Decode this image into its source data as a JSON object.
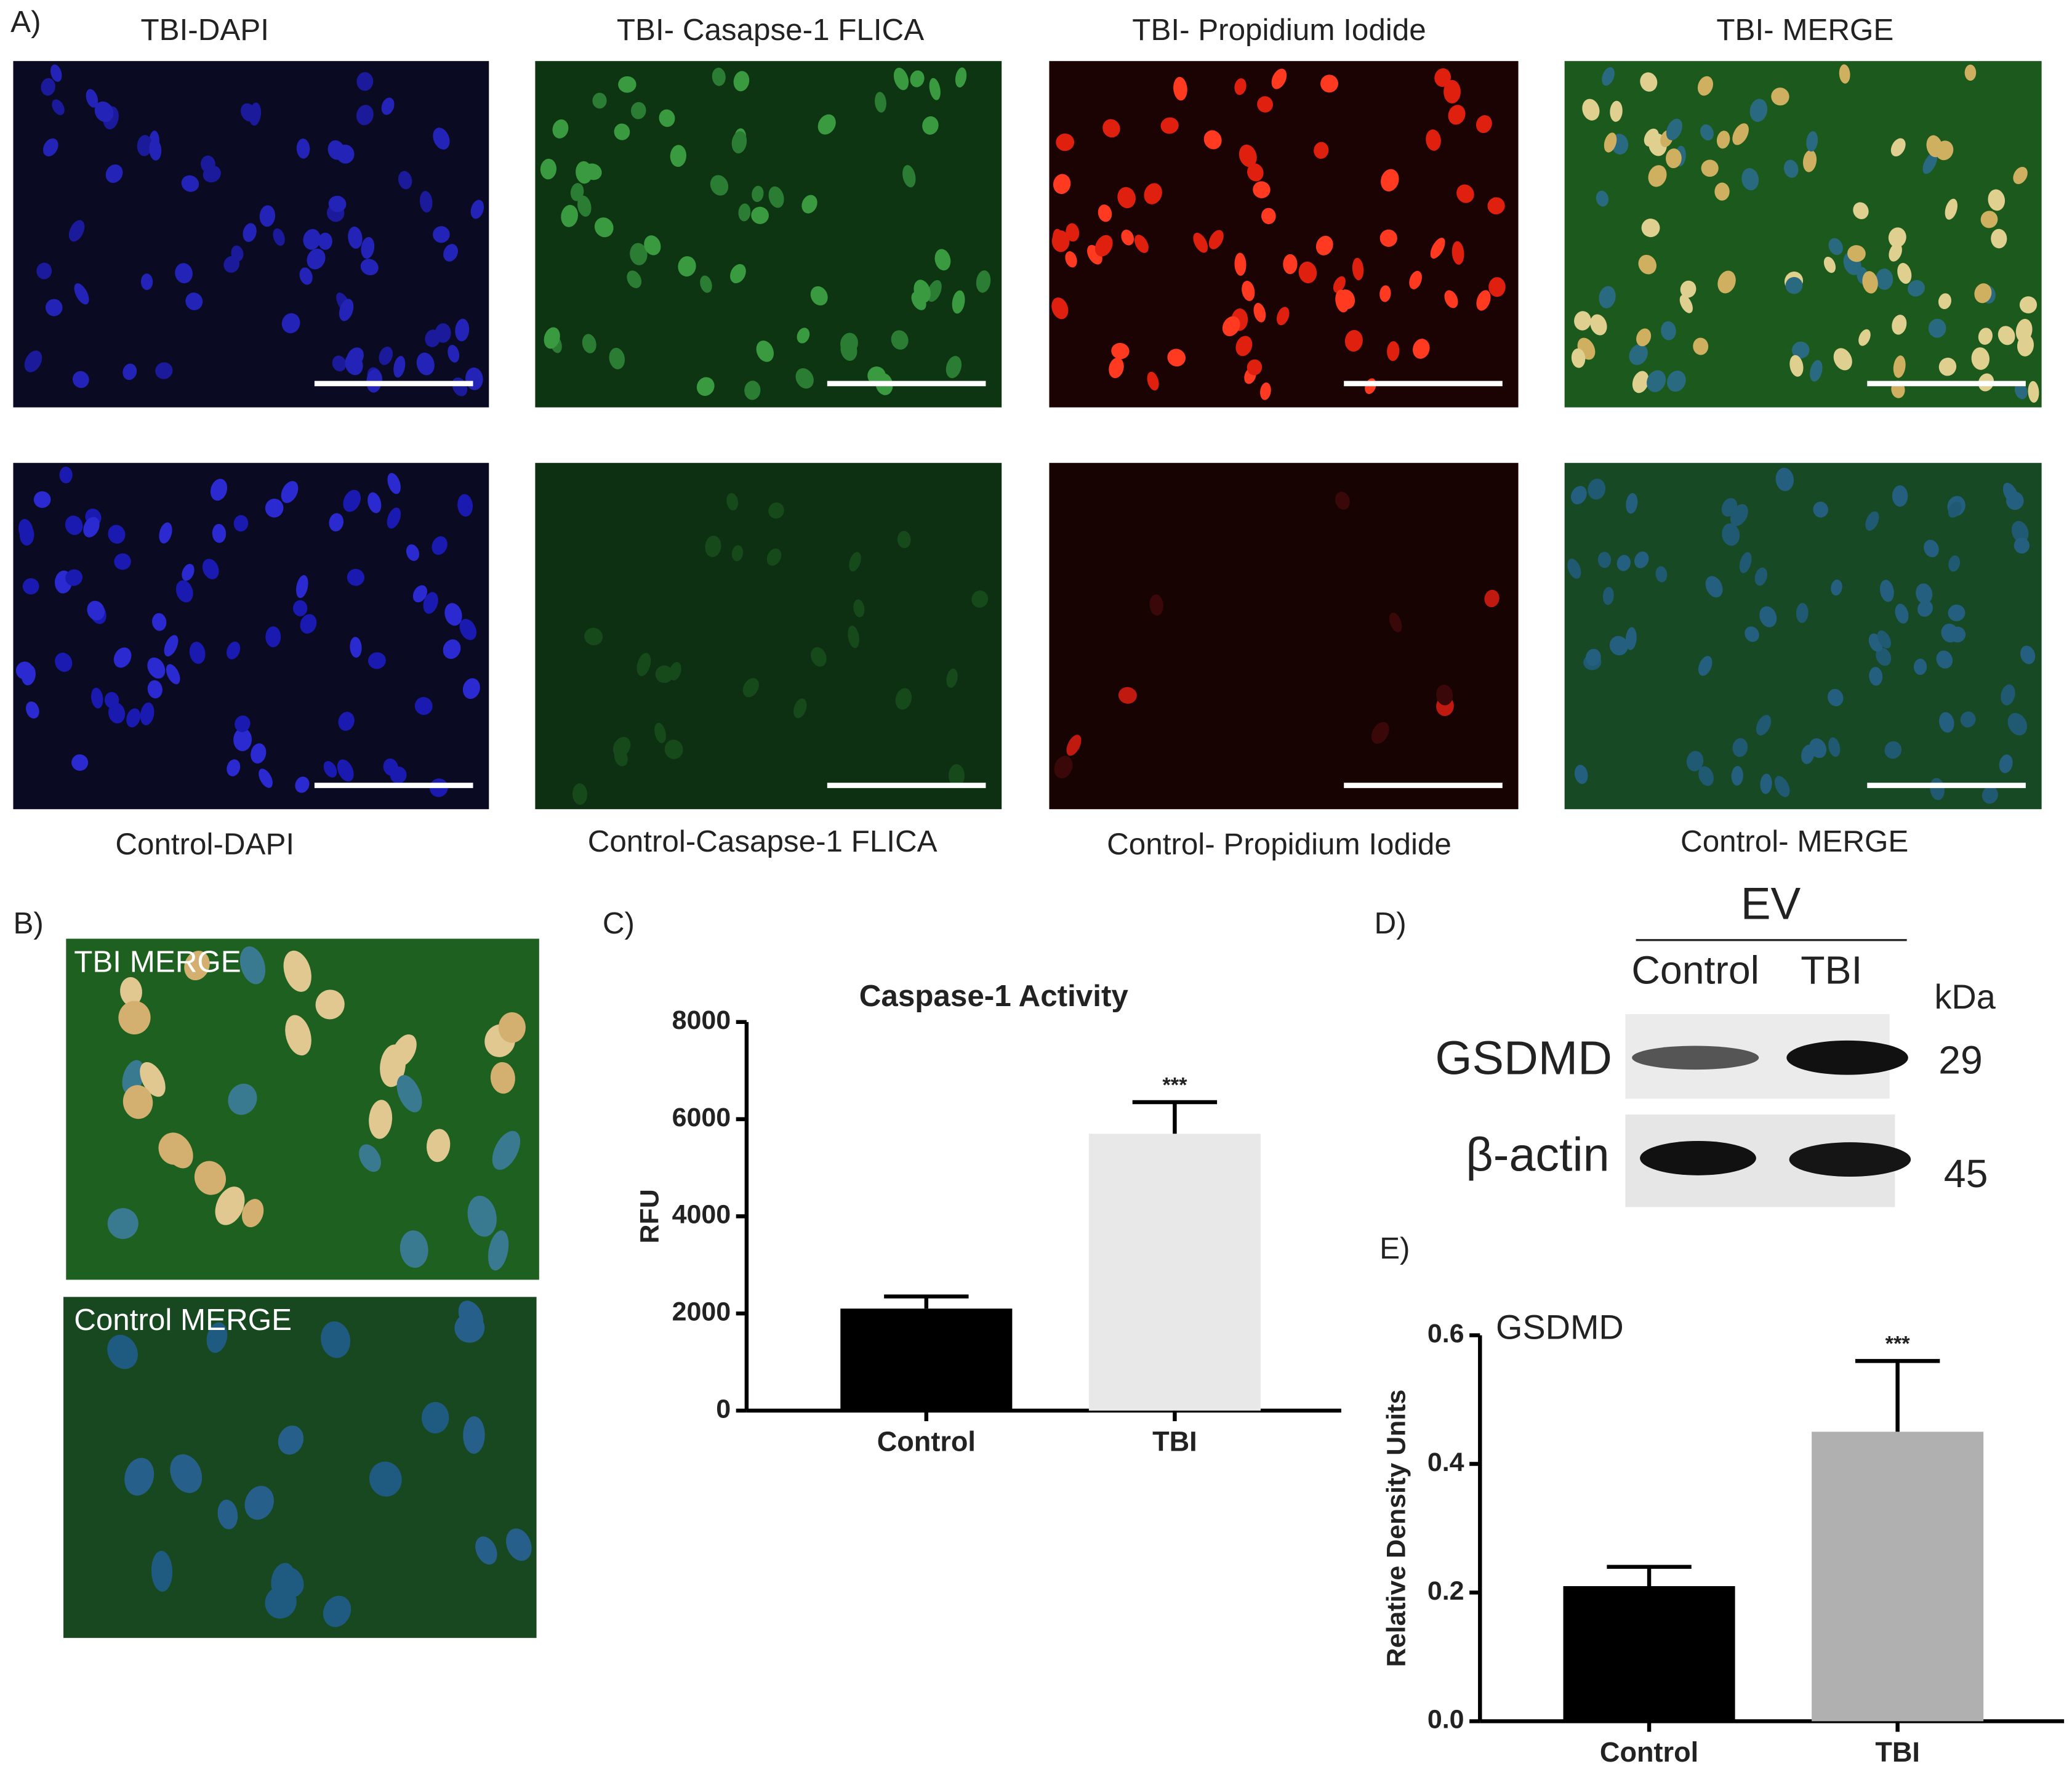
{
  "panel_labels": {
    "a": "A)",
    "b": "B)",
    "c": "C)",
    "d": "D)",
    "e": "E)"
  },
  "panel_a": {
    "top_captions": [
      "TBI-DAPI",
      "TBI- Casapse-1 FLICA",
      "TBI- Propidium Iodide",
      "TBI- MERGE"
    ],
    "bottom_captions": [
      "Control-DAPI",
      "Control-Casapse-1 FLICA",
      "Control- Propidium Iodide",
      "Control- MERGE"
    ]
  },
  "panel_b": {
    "captions": [
      "TBI MERGE",
      "Control MERGE"
    ]
  },
  "panel_d": {
    "group": "EV",
    "lanes": [
      "Control",
      "TBI"
    ],
    "unit": "kDa",
    "bands": [
      {
        "name": "GSDMD",
        "kda": "29"
      },
      {
        "name": "β-actin",
        "kda": "45"
      }
    ]
  },
  "chart_data": [
    {
      "type": "bar",
      "title": "Caspase-1  Activity",
      "y_label": "RFU",
      "categories": [
        "Control",
        "TBI"
      ],
      "values": [
        2100,
        5700
      ],
      "errors": [
        250,
        650
      ],
      "colors": [
        "#000000",
        "#e8e8e8"
      ],
      "annotations": [
        null,
        "***"
      ],
      "ylim": [
        0,
        8000
      ],
      "yticks": [
        0,
        2000,
        4000,
        6000,
        8000
      ]
    },
    {
      "type": "bar",
      "title": "GSDMD",
      "y_label": "Relative Density Units",
      "categories": [
        "Control",
        "TBI"
      ],
      "values": [
        0.21,
        0.45
      ],
      "errors": [
        0.03,
        0.11
      ],
      "colors": [
        "#000000",
        "#b0b0b0"
      ],
      "annotations": [
        null,
        "***"
      ],
      "ylim": [
        0,
        0.6
      ],
      "yticks": [
        {
          "value": 0,
          "label": "0.0"
        },
        0.2,
        0.4,
        0.6
      ]
    }
  ]
}
